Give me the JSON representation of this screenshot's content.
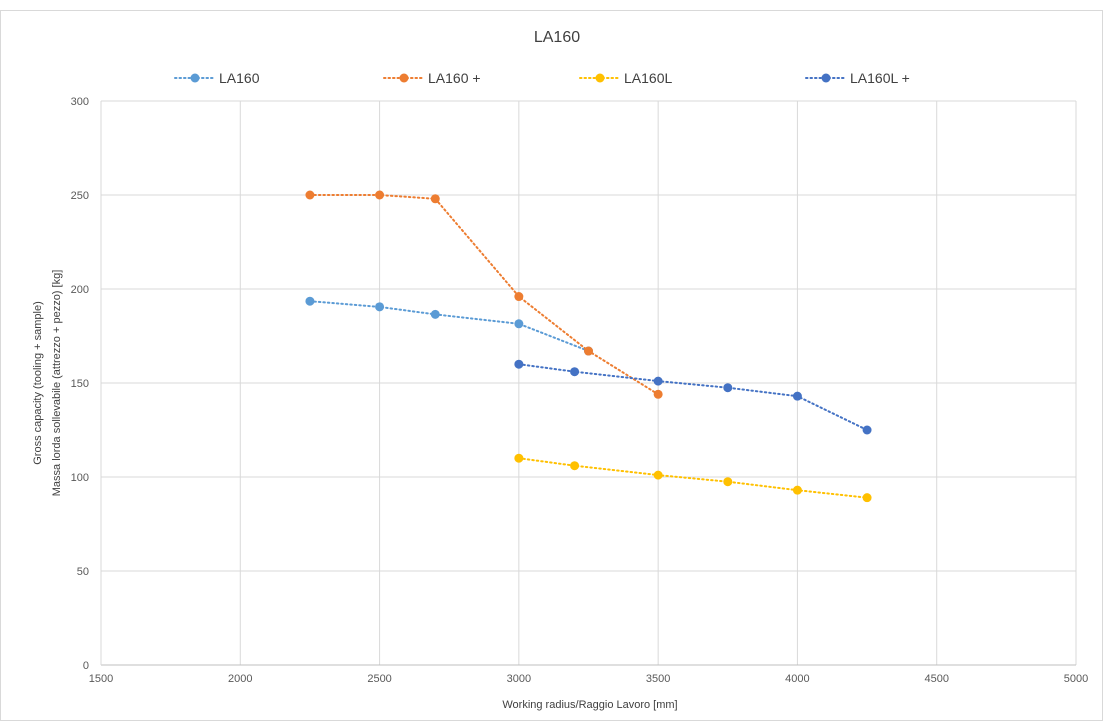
{
  "chart_data": {
    "type": "line",
    "title": "LA160",
    "xlabel": "Working radius/Raggio Lavoro [mm]",
    "ylabel": [
      "Gross capacity (tooling + sample)",
      "Massa lorda sollevabile (attrezzo + pezzo) [kg]"
    ],
    "xlim": [
      1500,
      5000
    ],
    "ylim": [
      0,
      300
    ],
    "xticks": [
      "1500",
      "2000",
      "2500",
      "3000",
      "3500",
      "4000",
      "4500",
      "5000"
    ],
    "yticks": [
      "0",
      "50",
      "100",
      "150",
      "200",
      "250",
      "300"
    ],
    "grid": true,
    "legend_position": "top",
    "series": [
      {
        "name": "LA160",
        "color": "#5B9BD5",
        "x": [
          2250,
          2500,
          2700,
          3000,
          3250
        ],
        "y": [
          193.5,
          190.5,
          186.5,
          181.5,
          167
        ]
      },
      {
        "name": "LA160 +",
        "color": "#ED7D31",
        "x": [
          2250,
          2500,
          2700,
          3000,
          3250,
          3500
        ],
        "y": [
          250,
          250,
          248,
          196,
          167,
          144
        ]
      },
      {
        "name": "LA160L",
        "color": "#FFC000",
        "x": [
          3000,
          3200,
          3500,
          3750,
          4000,
          4250
        ],
        "y": [
          110,
          106,
          101,
          97.5,
          93,
          89
        ]
      },
      {
        "name": "LA160L +",
        "color": "#4472C4",
        "x": [
          3000,
          3200,
          3500,
          3750,
          4000,
          4250
        ],
        "y": [
          160,
          156,
          151,
          147.5,
          143,
          125
        ]
      }
    ]
  }
}
